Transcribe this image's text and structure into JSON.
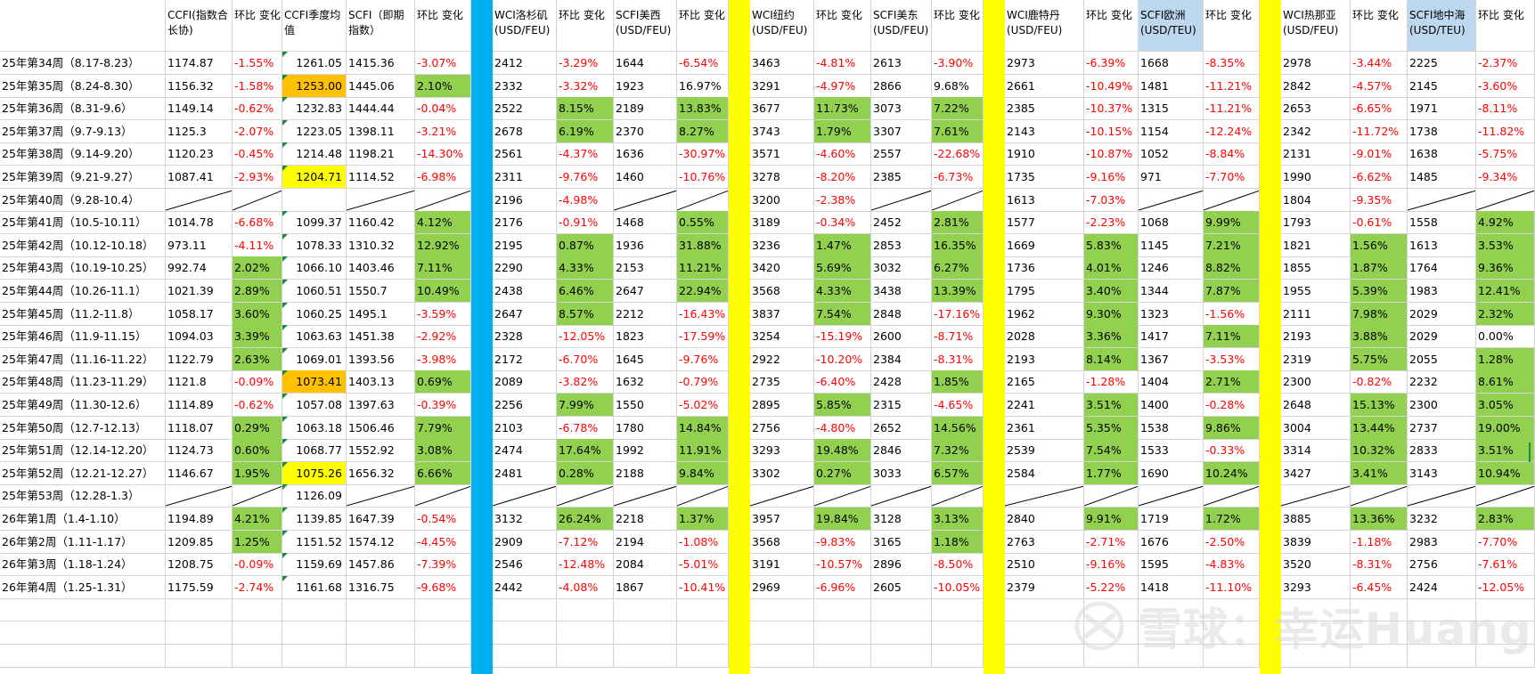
{
  "columns": [
    {
      "key": "week",
      "header": ""
    },
    {
      "key": "ccfi",
      "header": "CCFI(指数合长协)"
    },
    {
      "key": "ccfi_chg",
      "header": "环比 变化"
    },
    {
      "key": "ccfi_q",
      "header": "CCFI季度均值"
    },
    {
      "key": "scfi",
      "header": "SCFI（即期指数）"
    },
    {
      "key": "scfi_chg",
      "header": "环比    变化"
    },
    {
      "key": "sep1",
      "header": ""
    },
    {
      "key": "wci_la",
      "header": "WCI洛杉矶(USD/FEU)"
    },
    {
      "key": "wci_la_chg",
      "header": "环比 变化"
    },
    {
      "key": "scfi_usw",
      "header": "SCFI美西(USD/FEU)"
    },
    {
      "key": "scfi_usw_chg",
      "header": "环比 变化"
    },
    {
      "key": "sep2",
      "header": ""
    },
    {
      "key": "wci_ny",
      "header": "WCI纽约(USD/FEU)"
    },
    {
      "key": "wci_ny_chg",
      "header": "环比    变化"
    },
    {
      "key": "scfi_use",
      "header": "SCFI美东(USD/FEU)"
    },
    {
      "key": "scfi_use_chg",
      "header": "环比 变化"
    },
    {
      "key": "sep3",
      "header": ""
    },
    {
      "key": "wci_rtm",
      "header": "WCI鹿特丹(USD/FEU)"
    },
    {
      "key": "wci_rtm_chg",
      "header": "环比    变化"
    },
    {
      "key": "scfi_eu",
      "header": "SCFI欧洲(USD/TEU)"
    },
    {
      "key": "scfi_eu_chg",
      "header": "环比    变化"
    },
    {
      "key": "sep4",
      "header": ""
    },
    {
      "key": "wci_gen",
      "header": "WCI热那亚(USD/FEU)"
    },
    {
      "key": "wci_gen_chg",
      "header": "环比 变化"
    },
    {
      "key": "scfi_med",
      "header": "SCFI地中海(USD/TEU)"
    },
    {
      "key": "scfi_med_chg",
      "header": "环比    变化"
    }
  ],
  "rows": [
    [
      "25年第34周（8.17-8.23）",
      "1174.87",
      "-1.55%",
      "1261.05",
      "1415.36",
      "-3.07%",
      "",
      "2412",
      "-3.29%",
      "1644",
      "-6.54%",
      "",
      "3463",
      "-4.81%",
      "2613",
      "-3.90%",
      "",
      "2973",
      "-6.39%",
      "1668",
      "-8.35%",
      "",
      "2978",
      "-3.44%",
      "2225",
      "-2.37%"
    ],
    [
      "25年第35周（8.24-8.30）",
      "1156.32",
      "-1.58%",
      "1253.00",
      "1445.06",
      "2.10%",
      "",
      "2332",
      "-3.32%",
      "1923",
      "16.97%",
      "",
      "3291",
      "-4.97%",
      "2866",
      "9.68%",
      "",
      "2661",
      "-10.49%",
      "1481",
      "-11.21%",
      "",
      "2842",
      "-4.57%",
      "2145",
      "-3.60%"
    ],
    [
      "25年第36周（8.31-9.6）",
      "1149.14",
      "-0.62%",
      "1232.83",
      "1444.44",
      "-0.04%",
      "",
      "2522",
      "8.15%",
      "2189",
      "13.83%",
      "",
      "3677",
      "11.73%",
      "3073",
      "7.22%",
      "",
      "2385",
      "-10.37%",
      "1315",
      "-11.21%",
      "",
      "2653",
      "-6.65%",
      "1971",
      "-8.11%"
    ],
    [
      "25年第37周（9.7-9.13）",
      "1125.3",
      "-2.07%",
      "1223.05",
      "1398.11",
      "-3.21%",
      "",
      "2678",
      "6.19%",
      "2370",
      "8.27%",
      "",
      "3743",
      "1.79%",
      "3307",
      "7.61%",
      "",
      "2143",
      "-10.15%",
      "1154",
      "-12.24%",
      "",
      "2342",
      "-11.72%",
      "1738",
      "-11.82%"
    ],
    [
      "25年第38周（9.14-9.20）",
      "1120.23",
      "-0.45%",
      "1214.48",
      "1198.21",
      "-14.30%",
      "",
      "2561",
      "-4.37%",
      "1636",
      "-30.97%",
      "",
      "3571",
      "-4.60%",
      "2557",
      "-22.68%",
      "",
      "1910",
      "-10.87%",
      "1052",
      "-8.84%",
      "",
      "2131",
      "-9.01%",
      "1638",
      "-5.75%"
    ],
    [
      "25年第39周（9.21-9.27）",
      "1087.41",
      "-2.93%",
      "1204.71",
      "1114.52",
      "-6.98%",
      "",
      "2311",
      "-9.76%",
      "1460",
      "-10.76%",
      "",
      "3278",
      "-8.20%",
      "2385",
      "-6.73%",
      "",
      "1735",
      "-9.16%",
      "971",
      "-7.70%",
      "",
      "1990",
      "-6.62%",
      "1485",
      "-9.34%"
    ],
    [
      "25年第40周（9.28-10.4）",
      "/",
      "/",
      "",
      "/",
      "/",
      "",
      "2196",
      "-4.98%",
      "/",
      "/",
      "",
      "3200",
      "-2.38%",
      "/",
      "/",
      "",
      "1613",
      "-7.03%",
      "/",
      "/",
      "",
      "1804",
      "-9.35%",
      "/",
      "/"
    ],
    [
      "25年第41周（10.5-10.11）",
      "1014.78",
      "-6.68%",
      "1099.37",
      "1160.42",
      "4.12%",
      "",
      "2176",
      "-0.91%",
      "1468",
      "0.55%",
      "",
      "3189",
      "-0.34%",
      "2452",
      "2.81%",
      "",
      "1577",
      "-2.23%",
      "1068",
      "9.99%",
      "",
      "1793",
      "-0.61%",
      "1558",
      "4.92%"
    ],
    [
      "25年第42周（10.12-10.18）",
      "973.11",
      "-4.11%",
      "1078.33",
      "1310.32",
      "12.92%",
      "",
      "2195",
      "0.87%",
      "1936",
      "31.88%",
      "",
      "3236",
      "1.47%",
      "2853",
      "16.35%",
      "",
      "1669",
      "5.83%",
      "1145",
      "7.21%",
      "",
      "1821",
      "1.56%",
      "1613",
      "3.53%"
    ],
    [
      "25年第43周（10.19-10.25）",
      "992.74",
      "2.02%",
      "1066.10",
      "1403.46",
      "7.11%",
      "",
      "2290",
      "4.33%",
      "2153",
      "11.21%",
      "",
      "3420",
      "5.69%",
      "3032",
      "6.27%",
      "",
      "1736",
      "4.01%",
      "1246",
      "8.82%",
      "",
      "1855",
      "1.87%",
      "1764",
      "9.36%"
    ],
    [
      "25年第44周（10.26-11.1）",
      "1021.39",
      "2.89%",
      "1060.51",
      "1550.7",
      "10.49%",
      "",
      "2438",
      "6.46%",
      "2647",
      "22.94%",
      "",
      "3568",
      "4.33%",
      "3438",
      "13.39%",
      "",
      "1795",
      "3.40%",
      "1344",
      "7.87%",
      "",
      "1955",
      "5.39%",
      "1983",
      "12.41%"
    ],
    [
      "25年第45周（11.2-11.8）",
      "1058.17",
      "3.60%",
      "1060.25",
      "1495.1",
      "-3.59%",
      "",
      "2647",
      "8.57%",
      "2212",
      "-16.43%",
      "",
      "3837",
      "7.54%",
      "2848",
      "-17.16%",
      "",
      "1962",
      "9.30%",
      "1323",
      "-1.56%",
      "",
      "2111",
      "7.98%",
      "2029",
      "2.32%"
    ],
    [
      "25年第46周（11.9-11.15）",
      "1094.03",
      "3.39%",
      "1063.63",
      "1451.38",
      "-2.92%",
      "",
      "2328",
      "-12.05%",
      "1823",
      "-17.59%",
      "",
      "3254",
      "-15.19%",
      "2600",
      "-8.71%",
      "",
      "2028",
      "3.36%",
      "1417",
      "7.11%",
      "",
      "2193",
      "3.88%",
      "2029",
      "0.00%"
    ],
    [
      "25年第47周（11.16-11.22）",
      "1122.79",
      "2.63%",
      "1069.01",
      "1393.56",
      "-3.98%",
      "",
      "2172",
      "-6.70%",
      "1645",
      "-9.76%",
      "",
      "2922",
      "-10.20%",
      "2384",
      "-8.31%",
      "",
      "2193",
      "8.14%",
      "1367",
      "-3.53%",
      "",
      "2319",
      "5.75%",
      "2055",
      "1.28%"
    ],
    [
      "25年第48周（11.23-11.29）",
      "1121.8",
      "-0.09%",
      "1073.41",
      "1403.13",
      "0.69%",
      "",
      "2089",
      "-3.82%",
      "1632",
      "-0.79%",
      "",
      "2735",
      "-6.40%",
      "2428",
      "1.85%",
      "",
      "2165",
      "-1.28%",
      "1404",
      "2.71%",
      "",
      "2300",
      "-0.82%",
      "2232",
      "8.61%"
    ],
    [
      "25年第49周（11.30-12.6）",
      "1114.89",
      "-0.62%",
      "1057.08",
      "1397.63",
      "-0.39%",
      "",
      "2256",
      "7.99%",
      "1550",
      "-5.02%",
      "",
      "2895",
      "5.85%",
      "2315",
      "-4.65%",
      "",
      "2241",
      "3.51%",
      "1400",
      "-0.28%",
      "",
      "2648",
      "15.13%",
      "2300",
      "3.05%"
    ],
    [
      "25年第50周（12.7-12.13）",
      "1118.07",
      "0.29%",
      "1063.18",
      "1506.46",
      "7.79%",
      "",
      "2103",
      "-6.78%",
      "1780",
      "14.84%",
      "",
      "2756",
      "-4.80%",
      "2652",
      "14.56%",
      "",
      "2361",
      "5.35%",
      "1538",
      "9.86%",
      "",
      "3004",
      "13.44%",
      "2737",
      "19.00%"
    ],
    [
      "25年第51周（12.14-12.20）",
      "1124.73",
      "0.60%",
      "1068.77",
      "1552.92",
      "3.08%",
      "",
      "2474",
      "17.64%",
      "1992",
      "11.91%",
      "",
      "3293",
      "19.48%",
      "2846",
      "7.32%",
      "",
      "2539",
      "7.54%",
      "1533",
      "-0.33%",
      "",
      "3314",
      "10.32%",
      "2833",
      "3.51%"
    ],
    [
      "25年第52周（12.21-12.27）",
      "1146.67",
      "1.95%",
      "1075.26",
      "1656.32",
      "6.66%",
      "",
      "2481",
      "0.28%",
      "2188",
      "9.84%",
      "",
      "3302",
      "0.27%",
      "3033",
      "6.57%",
      "",
      "2584",
      "1.77%",
      "1690",
      "10.24%",
      "",
      "3427",
      "3.41%",
      "3143",
      "10.94%"
    ],
    [
      "25年第53周（12.28-1.3）",
      "/",
      "/",
      "1126.09",
      "/",
      "/",
      "",
      "/",
      "/",
      "/",
      "/",
      "",
      "/",
      "/",
      "/",
      "/",
      "",
      "/",
      "/",
      "/",
      "/",
      "",
      "/",
      "/",
      "/",
      "/"
    ],
    [
      "26年第1周（1.4-1.10）",
      "1194.89",
      "4.21%",
      "1139.85",
      "1647.39",
      "-0.54%",
      "",
      "3132",
      "26.24%",
      "2218",
      "1.37%",
      "",
      "3957",
      "19.84%",
      "3128",
      "3.13%",
      "",
      "2840",
      "9.91%",
      "1719",
      "1.72%",
      "",
      "3885",
      "13.36%",
      "3232",
      "2.83%"
    ],
    [
      "26年第2周（1.11-1.17）",
      "1209.85",
      "1.25%",
      "1151.52",
      "1574.12",
      "-4.45%",
      "",
      "2909",
      "-7.12%",
      "2194",
      "-1.08%",
      "",
      "3568",
      "-9.83%",
      "3165",
      "1.18%",
      "",
      "2763",
      "-2.71%",
      "1676",
      "-2.50%",
      "",
      "3839",
      "-1.18%",
      "2983",
      "-7.70%"
    ],
    [
      "26年第3周（1.18-1.24）",
      "1208.75",
      "-0.09%",
      "1159.69",
      "1457.86",
      "-7.39%",
      "",
      "2546",
      "-12.48%",
      "2084",
      "-5.01%",
      "",
      "3191",
      "-10.57%",
      "2896",
      "-8.50%",
      "",
      "2510",
      "-9.16%",
      "1595",
      "-4.83%",
      "",
      "3520",
      "-8.31%",
      "2756",
      "-7.61%"
    ],
    [
      "26年第4周（1.25-1.31）",
      "1175.59",
      "-2.74%",
      "1161.68",
      "1316.75",
      "-9.68%",
      "",
      "2442",
      "-4.08%",
      "1867",
      "-10.41%",
      "",
      "2969",
      "-6.96%",
      "2605",
      "-10.05%",
      "",
      "2379",
      "-5.22%",
      "1418",
      "-11.10%",
      "",
      "3293",
      "-6.45%",
      "2424",
      "-12.05%"
    ]
  ],
  "highlights": {
    "green": [
      [
        1,
        5
      ],
      [
        2,
        8
      ],
      [
        2,
        10
      ],
      [
        2,
        13
      ],
      [
        2,
        15
      ],
      [
        3,
        8
      ],
      [
        3,
        10
      ],
      [
        3,
        13
      ],
      [
        3,
        15
      ],
      [
        7,
        5
      ],
      [
        7,
        10
      ],
      [
        7,
        15
      ],
      [
        7,
        20
      ],
      [
        7,
        25
      ],
      [
        8,
        5
      ],
      [
        8,
        8
      ],
      [
        8,
        10
      ],
      [
        8,
        13
      ],
      [
        8,
        15
      ],
      [
        8,
        18
      ],
      [
        8,
        20
      ],
      [
        8,
        23
      ],
      [
        8,
        25
      ],
      [
        9,
        2
      ],
      [
        9,
        5
      ],
      [
        9,
        8
      ],
      [
        9,
        10
      ],
      [
        9,
        13
      ],
      [
        9,
        15
      ],
      [
        9,
        18
      ],
      [
        9,
        20
      ],
      [
        9,
        23
      ],
      [
        9,
        25
      ],
      [
        10,
        2
      ],
      [
        10,
        5
      ],
      [
        10,
        8
      ],
      [
        10,
        10
      ],
      [
        10,
        13
      ],
      [
        10,
        15
      ],
      [
        10,
        18
      ],
      [
        10,
        20
      ],
      [
        10,
        23
      ],
      [
        10,
        25
      ],
      [
        11,
        2
      ],
      [
        11,
        8
      ],
      [
        11,
        13
      ],
      [
        11,
        18
      ],
      [
        11,
        23
      ],
      [
        11,
        25
      ],
      [
        12,
        2
      ],
      [
        12,
        18
      ],
      [
        12,
        20
      ],
      [
        12,
        23
      ],
      [
        13,
        2
      ],
      [
        13,
        18
      ],
      [
        13,
        23
      ],
      [
        13,
        25
      ],
      [
        14,
        5
      ],
      [
        14,
        15
      ],
      [
        14,
        20
      ],
      [
        14,
        25
      ],
      [
        15,
        8
      ],
      [
        15,
        13
      ],
      [
        15,
        18
      ],
      [
        15,
        23
      ],
      [
        15,
        25
      ],
      [
        16,
        2
      ],
      [
        16,
        5
      ],
      [
        16,
        10
      ],
      [
        16,
        15
      ],
      [
        16,
        18
      ],
      [
        16,
        20
      ],
      [
        16,
        23
      ],
      [
        16,
        25
      ],
      [
        17,
        2
      ],
      [
        17,
        5
      ],
      [
        17,
        8
      ],
      [
        17,
        10
      ],
      [
        17,
        13
      ],
      [
        17,
        15
      ],
      [
        17,
        18
      ],
      [
        17,
        23
      ],
      [
        17,
        25
      ],
      [
        18,
        2
      ],
      [
        18,
        5
      ],
      [
        18,
        8
      ],
      [
        18,
        10
      ],
      [
        18,
        13
      ],
      [
        18,
        15
      ],
      [
        18,
        18
      ],
      [
        18,
        20
      ],
      [
        18,
        23
      ],
      [
        18,
        25
      ],
      [
        20,
        2
      ],
      [
        20,
        8
      ],
      [
        20,
        10
      ],
      [
        20,
        13
      ],
      [
        20,
        15
      ],
      [
        20,
        18
      ],
      [
        20,
        20
      ],
      [
        20,
        23
      ],
      [
        20,
        25
      ],
      [
        21,
        2
      ],
      [
        21,
        15
      ]
    ],
    "orange": [
      [
        1,
        3
      ],
      [
        14,
        3
      ]
    ],
    "yellow": [
      [
        5,
        3
      ],
      [
        18,
        3
      ]
    ],
    "light_blue_headers": [
      19,
      24
    ]
  },
  "separators": [
    {
      "after_col": 5,
      "color": "#00b0f0"
    },
    {
      "after_col": 10,
      "color": "#ffff00"
    },
    {
      "after_col": 15,
      "color": "#ffff00"
    },
    {
      "after_col": 20,
      "color": "#ffff00"
    }
  ],
  "watermark": {
    "text": "雪球：幸运Huang",
    "logo": "snowball-logo-icon"
  }
}
